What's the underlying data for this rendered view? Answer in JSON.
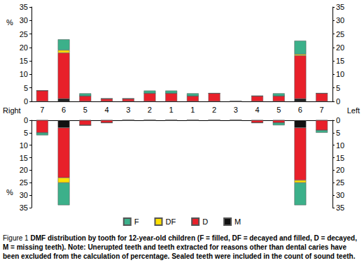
{
  "chart_data": [
    {
      "type": "bar",
      "stacked": true,
      "ylabel": "%",
      "categories": [
        "7",
        "6",
        "5",
        "4",
        "3",
        "2",
        "1",
        "1",
        "2",
        "3",
        "4",
        "5",
        "6",
        "7"
      ],
      "series": [
        {
          "name": "F",
          "color": "#3cb08a",
          "values": [
            0,
            4,
            1,
            0,
            0,
            1,
            1,
            1,
            0,
            0,
            0,
            1,
            5,
            0
          ]
        },
        {
          "name": "DF",
          "color": "#ffe000",
          "values": [
            0,
            1,
            0,
            0,
            0,
            0,
            0,
            0,
            0,
            0,
            0,
            0,
            0.5,
            0
          ]
        },
        {
          "name": "D",
          "color": "#e8202a",
          "values": [
            4,
            17,
            2,
            1,
            1,
            3,
            3,
            2,
            3,
            0,
            2,
            2,
            16,
            3
          ]
        },
        {
          "name": "M",
          "color": "#111111",
          "values": [
            0,
            1,
            0,
            0,
            0,
            0,
            0,
            0,
            0,
            0,
            0,
            0,
            1,
            0
          ]
        }
      ],
      "ylim": [
        0,
        35
      ],
      "yticks": [
        0,
        5,
        10,
        15,
        20,
        25,
        30,
        35
      ],
      "grid": false,
      "legend": "bottom"
    },
    {
      "type": "bar",
      "stacked": true,
      "ylabel": "%",
      "categories": [
        "7",
        "6",
        "5",
        "4",
        "3",
        "2",
        "1",
        "1",
        "2",
        "3",
        "4",
        "5",
        "6",
        "7"
      ],
      "series": [
        {
          "name": "F",
          "color": "#3cb08a",
          "values": [
            1,
            9,
            0,
            0,
            0,
            0,
            0,
            0,
            0,
            0,
            0,
            1,
            9,
            1
          ]
        },
        {
          "name": "DF",
          "color": "#ffe000",
          "values": [
            0,
            2,
            0,
            0,
            0,
            0,
            0,
            0,
            0,
            0,
            0,
            0,
            1,
            0
          ]
        },
        {
          "name": "D",
          "color": "#e8202a",
          "values": [
            5,
            20,
            2,
            1,
            0,
            0,
            0,
            0,
            0,
            0,
            1,
            1,
            21,
            4
          ]
        },
        {
          "name": "M",
          "color": "#111111",
          "values": [
            0,
            3,
            0,
            0,
            0,
            0,
            0,
            0,
            0,
            0,
            0,
            0,
            3,
            0
          ]
        }
      ],
      "ylim": [
        35,
        0
      ],
      "yticks": [
        0,
        5,
        10,
        15,
        20,
        25,
        30,
        35
      ],
      "grid": false,
      "tick_labels": "y"
    }
  ],
  "side_labels": [
    "Right",
    "Left"
  ],
  "caption": {
    "label": "Figure 1",
    "text": "DMF distribution by tooth for 12-year-old children (F = filled, DF = decayed and filled, D = decayed, M = missing teeth). Note: Unerupted teeth and teeth extracted for reasons other than dental caries have been excluded from the calculation of percentage. Sealed teeth were included in the count of sound teeth."
  }
}
